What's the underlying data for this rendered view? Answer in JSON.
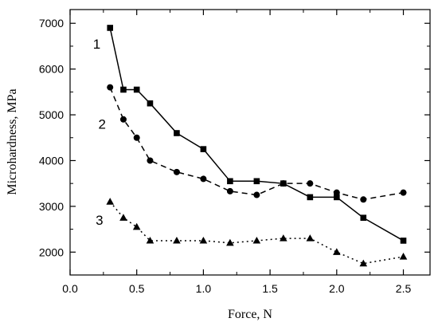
{
  "chart_data": {
    "type": "line",
    "xlabel": "Force, N",
    "ylabel": "Microhardness, MPa",
    "xlim": [
      0.0,
      2.7
    ],
    "ylim": [
      1500,
      7300
    ],
    "x_ticks": [
      "0.0",
      "0.5",
      "1.0",
      "1.5",
      "2.0",
      "2.5"
    ],
    "y_ticks": [
      "2000",
      "3000",
      "4000",
      "5000",
      "6000",
      "7000"
    ],
    "grid": false,
    "legend": "none",
    "series": [
      {
        "name": "1",
        "marker": "square",
        "line_style": "solid",
        "label_at": [
          0.2,
          6550
        ],
        "points": [
          [
            0.3,
            6900
          ],
          [
            0.4,
            5550
          ],
          [
            0.5,
            5550
          ],
          [
            0.6,
            5250
          ],
          [
            0.8,
            4600
          ],
          [
            1.0,
            4250
          ],
          [
            1.2,
            3550
          ],
          [
            1.4,
            3550
          ],
          [
            1.6,
            3500
          ],
          [
            1.8,
            3200
          ],
          [
            2.0,
            3200
          ],
          [
            2.2,
            2750
          ],
          [
            2.5,
            2250
          ]
        ]
      },
      {
        "name": "2",
        "marker": "circle",
        "line_style": "dashed",
        "label_at": [
          0.24,
          4800
        ],
        "points": [
          [
            0.3,
            5600
          ],
          [
            0.4,
            4900
          ],
          [
            0.5,
            4500
          ],
          [
            0.6,
            4000
          ],
          [
            0.8,
            3750
          ],
          [
            1.0,
            3600
          ],
          [
            1.2,
            3330
          ],
          [
            1.4,
            3250
          ],
          [
            1.6,
            3500
          ],
          [
            1.8,
            3500
          ],
          [
            2.0,
            3300
          ],
          [
            2.2,
            3150
          ],
          [
            2.5,
            3300
          ]
        ]
      },
      {
        "name": "3",
        "marker": "triangle",
        "line_style": "dotted",
        "label_at": [
          0.22,
          2700
        ],
        "points": [
          [
            0.3,
            3100
          ],
          [
            0.4,
            2750
          ],
          [
            0.5,
            2550
          ],
          [
            0.6,
            2250
          ],
          [
            0.8,
            2250
          ],
          [
            1.0,
            2250
          ],
          [
            1.2,
            2200
          ],
          [
            1.4,
            2250
          ],
          [
            1.6,
            2300
          ],
          [
            1.8,
            2300
          ],
          [
            2.0,
            2000
          ],
          [
            2.2,
            1750
          ],
          [
            2.5,
            1900
          ]
        ]
      }
    ]
  }
}
